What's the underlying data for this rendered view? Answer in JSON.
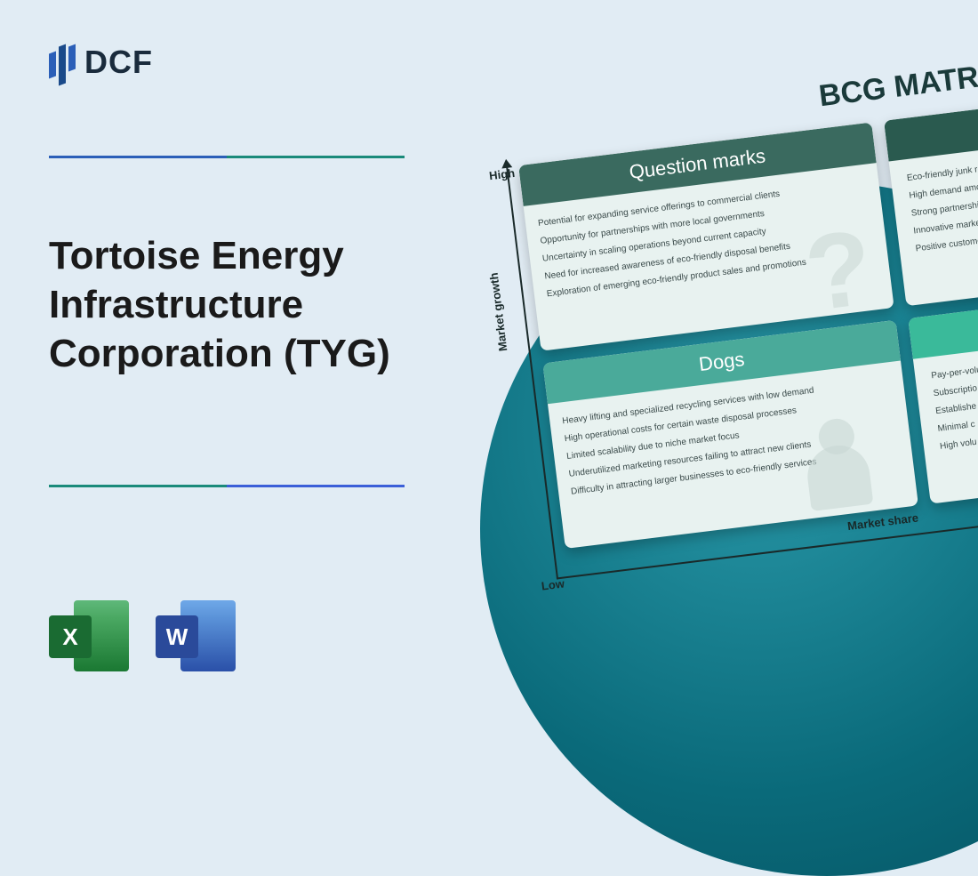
{
  "logo": {
    "text": "DCF"
  },
  "title": "Tortoise Energy Infrastructure Corporation (TYG)",
  "icons": {
    "excel": "X",
    "word": "W"
  },
  "matrix": {
    "title": "BCG MATRIX",
    "axis_y": "Market growth",
    "axis_x": "Market share",
    "high": "High",
    "low": "Low",
    "question_marks": {
      "header": "Question marks",
      "items": [
        "Potential for expanding service offerings to commercial clients",
        "Opportunity for partnerships with more local governments",
        "Uncertainty in scaling operations beyond current capacity",
        "Need for increased awareness of eco-friendly disposal benefits",
        "Exploration of emerging eco-friendly product sales and promotions"
      ]
    },
    "stars": {
      "items": [
        "Eco-friendly junk remo",
        "High demand among",
        "Strong partnerships",
        "Innovative marketi",
        "Positive customer"
      ]
    },
    "dogs": {
      "header": "Dogs",
      "items": [
        "Heavy lifting and specialized recycling services with low demand",
        "High operational costs for certain waste disposal processes",
        "Limited scalability due to niche market focus",
        "Underutilized marketing resources failing to attract new clients",
        "Difficulty in attracting larger businesses to eco-friendly services"
      ]
    },
    "cows": {
      "items": [
        "Pay-per-volu",
        "Subscriptio",
        "Establishe",
        "Minimal c",
        "High volu"
      ]
    }
  },
  "colors": {
    "page_bg": "#e1ecf4",
    "circle_grad_inner": "#2a9aaa",
    "circle_grad_outer": "#05505f",
    "qm_header": "#3a6a5f",
    "dogs_header": "#4aaa9a",
    "card_bg": "#e8f2f0",
    "excel": "#1a6b32",
    "word": "#2a4a9a"
  }
}
